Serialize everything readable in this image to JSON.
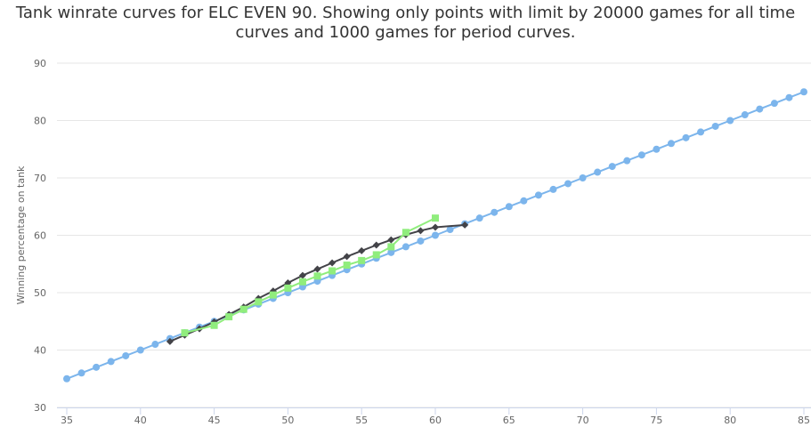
{
  "title_line1": "Tank winrate curves for ELC EVEN 90. Showing only points with limit by 20000 games for all time",
  "title_line2": "curves and 1000 games for period curves.",
  "chart_data": {
    "type": "line",
    "ylabel": "Winning percentage on tank",
    "xlabel": "",
    "xlim": [
      35,
      85
    ],
    "ylim": [
      30,
      90
    ],
    "xticks": [
      35,
      40,
      45,
      50,
      55,
      60,
      65,
      70,
      75,
      80,
      85
    ],
    "yticks": [
      30,
      40,
      50,
      60,
      70,
      80,
      90
    ],
    "grid": "horizontal",
    "series": [
      {
        "color": "#7cb5ec",
        "marker": "circle",
        "x": [
          35,
          36,
          37,
          38,
          39,
          40,
          41,
          42,
          43,
          44,
          45,
          46,
          47,
          48,
          49,
          50,
          51,
          52,
          53,
          54,
          55,
          56,
          57,
          58,
          59,
          60,
          61,
          62,
          63,
          64,
          65,
          66,
          67,
          68,
          69,
          70,
          71,
          72,
          73,
          74,
          75,
          76,
          77,
          78,
          79,
          80,
          81,
          82,
          83,
          84,
          85
        ],
        "y": [
          35,
          36,
          37,
          38,
          39,
          40,
          41,
          42,
          43,
          44,
          45,
          46,
          47,
          48,
          49,
          50,
          51,
          52,
          53,
          54,
          55,
          56,
          57,
          58,
          59,
          60,
          61,
          62,
          63,
          64,
          65,
          66,
          67,
          68,
          69,
          70,
          71,
          72,
          73,
          74,
          75,
          76,
          77,
          78,
          79,
          80,
          81,
          82,
          83,
          84,
          85
        ]
      },
      {
        "color": "#434348",
        "marker": "diamond",
        "x": [
          42,
          43,
          44,
          45,
          46,
          47,
          48,
          49,
          50,
          51,
          52,
          53,
          54,
          55,
          56,
          57,
          58,
          59,
          60,
          62
        ],
        "y": [
          41.5,
          42.6,
          43.7,
          44.9,
          46.2,
          47.5,
          49.0,
          50.3,
          51.7,
          53.0,
          54.1,
          55.2,
          56.3,
          57.3,
          58.3,
          59.2,
          60.1,
          60.8,
          61.4,
          61.8
        ]
      },
      {
        "color": "#90ed7d",
        "marker": "square",
        "x": [
          43,
          45,
          46,
          47,
          48,
          49,
          50,
          51,
          52,
          53,
          54,
          55,
          56,
          57,
          58,
          60
        ],
        "y": [
          43.0,
          44.3,
          45.8,
          47.1,
          48.4,
          49.6,
          50.8,
          51.9,
          52.9,
          53.8,
          54.8,
          55.6,
          56.6,
          58.0,
          60.5,
          63.0
        ]
      }
    ]
  }
}
